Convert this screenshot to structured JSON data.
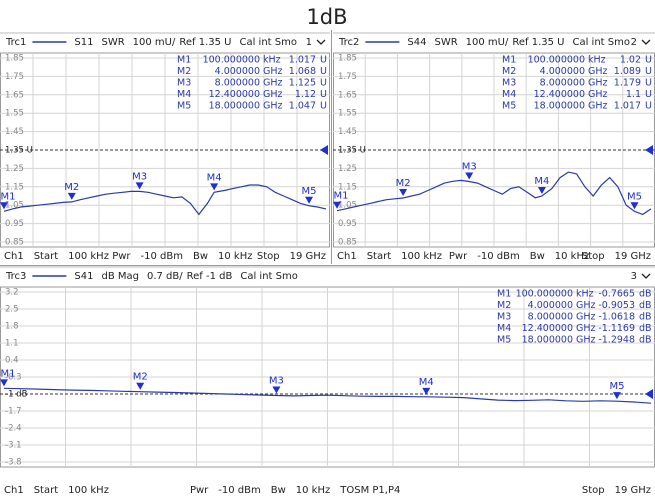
{
  "title": "1dB",
  "chart_data": [
    {
      "type": "line",
      "trace": "Trc1",
      "format": "SWR",
      "scale": "100 mU/",
      "ref": "Ref 1.35 U",
      "cal": "Cal int Smo",
      "trace_number": "1",
      "footer": [
        [
          "Ch1",
          "Start",
          "100 kHz"
        ],
        [
          "Pwr",
          "-10 dBm",
          "Bw",
          "10 kHz"
        ],
        [
          "Stop",
          "19 GHz"
        ]
      ],
      "x": [
        0.0001,
        0.5,
        1,
        1.5,
        2,
        2.5,
        3,
        3.5,
        4,
        4.5,
        5,
        5.5,
        6,
        6.5,
        7,
        7.5,
        8,
        8.5,
        9,
        9.5,
        10,
        10.5,
        11,
        11.5,
        12,
        12.4,
        13,
        13.5,
        14,
        14.5,
        15,
        15.5,
        16,
        16.5,
        17,
        17.5,
        18,
        18.5,
        19
      ],
      "xlim": [
        0.0001,
        19
      ],
      "ylim": [
        0.85,
        1.85
      ],
      "grid": true,
      "yticks": [
        1.85,
        1.75,
        1.65,
        1.55,
        1.45,
        {
          "value": 1.35,
          "label": "1.35 U"
        },
        1.25,
        1.15,
        1.05,
        0.95,
        0.85
      ],
      "series": [
        {
          "name": "S11",
          "color": "#2b3aa8",
          "values": [
            1.017,
            1.03,
            1.04,
            1.045,
            1.05,
            1.055,
            1.06,
            1.065,
            1.068,
            1.08,
            1.09,
            1.1,
            1.11,
            1.115,
            1.12,
            1.125,
            1.125,
            1.12,
            1.11,
            1.1,
            1.09,
            1.095,
            1.06,
            1.0,
            1.06,
            1.12,
            1.13,
            1.14,
            1.15,
            1.16,
            1.16,
            1.15,
            1.12,
            1.1,
            1.08,
            1.06,
            1.047,
            1.04,
            1.03
          ]
        }
      ],
      "markers": [
        {
          "name": "M1",
          "x": {
            "value": 0.0001,
            "label": "100.000000"
          },
          "x_unit": "kHz",
          "value": 1.017,
          "unit": "U"
        },
        {
          "name": "M2",
          "x": {
            "value": 4,
            "label": "4.000000"
          },
          "x_unit": "GHz",
          "value": 1.068,
          "unit": "U"
        },
        {
          "name": "M3",
          "x": {
            "value": 8,
            "label": "8.000000"
          },
          "x_unit": "GHz",
          "value": 1.125,
          "unit": "U"
        },
        {
          "name": "M4",
          "x": {
            "value": 12.4,
            "label": "12.400000"
          },
          "x_unit": "GHz",
          "value": 1.12,
          "unit": "U"
        },
        {
          "name": "M5",
          "x": {
            "value": 18,
            "label": "18.000000"
          },
          "x_unit": "GHz",
          "value": 1.047,
          "unit": "U"
        }
      ]
    },
    {
      "type": "line",
      "trace": "Trc2",
      "format": "SWR",
      "scale": "100 mU/",
      "ref": "Ref 1.35 U",
      "cal": "Cal int Smo",
      "trace_number": "2",
      "footer": [
        [
          "Ch1",
          "Start",
          "100 kHz"
        ],
        [
          "Pwr",
          "-10 dBm",
          "Bw",
          "10 kHz"
        ],
        [
          "Stop",
          "19 GHz"
        ]
      ],
      "x": [
        0.0001,
        0.5,
        1,
        1.5,
        2,
        2.5,
        3,
        3.5,
        4,
        4.5,
        5,
        5.5,
        6,
        6.5,
        7,
        7.5,
        8,
        8.5,
        9,
        9.5,
        10,
        10.5,
        11,
        11.5,
        12,
        12.4,
        13,
        13.5,
        14,
        14.5,
        15,
        15.5,
        16,
        16.5,
        17,
        17.5,
        18,
        18.5,
        19
      ],
      "xlim": [
        0.0001,
        19
      ],
      "ylim": [
        0.85,
        1.85
      ],
      "grid": true,
      "yticks": [
        1.85,
        1.75,
        1.65,
        1.55,
        1.45,
        {
          "value": 1.35,
          "label": "1.35 U"
        },
        1.25,
        1.15,
        1.05,
        0.95,
        0.85
      ],
      "series": [
        {
          "name": "S44",
          "color": "#2b3aa8",
          "values": [
            1.02,
            1.03,
            1.04,
            1.05,
            1.06,
            1.07,
            1.08,
            1.085,
            1.089,
            1.1,
            1.11,
            1.13,
            1.15,
            1.17,
            1.18,
            1.185,
            1.179,
            1.17,
            1.15,
            1.13,
            1.11,
            1.14,
            1.15,
            1.12,
            1.09,
            1.1,
            1.14,
            1.2,
            1.23,
            1.22,
            1.15,
            1.1,
            1.16,
            1.2,
            1.15,
            1.05,
            1.017,
            1.0,
            1.03
          ]
        }
      ],
      "markers": [
        {
          "name": "M1",
          "x": {
            "value": 0.0001,
            "label": "100.000000"
          },
          "x_unit": "kHz",
          "value": 1.02,
          "unit": "U"
        },
        {
          "name": "M2",
          "x": {
            "value": 4,
            "label": "4.000000"
          },
          "x_unit": "GHz",
          "value": 1.089,
          "unit": "U"
        },
        {
          "name": "M3",
          "x": {
            "value": 8,
            "label": "8.000000"
          },
          "x_unit": "GHz",
          "value": 1.179,
          "unit": "U"
        },
        {
          "name": "M4",
          "x": {
            "value": 12.4,
            "label": "12.400000"
          },
          "x_unit": "GHz",
          "value": 1.1,
          "unit": "U"
        },
        {
          "name": "M5",
          "x": {
            "value": 18,
            "label": "18.000000"
          },
          "x_unit": "GHz",
          "value": 1.017,
          "unit": "U"
        }
      ]
    },
    {
      "type": "line",
      "trace": "Trc3",
      "format": "dB Mag",
      "scale": "0.7 dB/",
      "ref": "Ref -1 dB",
      "cal": "Cal int Smo",
      "trace_number": "3",
      "footer": [
        [
          "Ch1",
          "Start",
          "100 kHz"
        ],
        [
          "Pwr",
          "-10 dBm",
          "Bw",
          "10 kHz",
          "TOSM P1,P4"
        ],
        [
          "Stop",
          "19 GHz"
        ]
      ],
      "x": [
        0.0001,
        0.5,
        1,
        1.5,
        2,
        2.5,
        3,
        3.5,
        4,
        4.5,
        5,
        5.5,
        6,
        6.5,
        7,
        7.5,
        8,
        8.5,
        9,
        9.5,
        10,
        10.5,
        11,
        11.5,
        12,
        12.4,
        13,
        13.5,
        14,
        14.5,
        15,
        15.5,
        16,
        16.5,
        17,
        17.5,
        18,
        18.5,
        19
      ],
      "xlim": [
        0.0001,
        19
      ],
      "ylim": [
        -3.8,
        3.2
      ],
      "grid": true,
      "yticks": [
        3.2,
        2.5,
        1.8,
        1.1,
        0.4,
        -0.3,
        {
          "value": -1,
          "label": "-1 dB"
        },
        -1.7,
        -2.4,
        -3.1,
        -3.8
      ],
      "series": [
        {
          "name": "S41",
          "color": "#2b3aa8",
          "values": [
            -0.7665,
            -0.78,
            -0.8,
            -0.82,
            -0.84,
            -0.85,
            -0.87,
            -0.89,
            -0.9053,
            -0.92,
            -0.94,
            -0.96,
            -0.98,
            -1.0,
            -1.02,
            -1.04,
            -1.0618,
            -1.08,
            -1.06,
            -1.05,
            -1.07,
            -1.09,
            -1.1,
            -1.1,
            -1.11,
            -1.1169,
            -1.13,
            -1.15,
            -1.2,
            -1.25,
            -1.27,
            -1.26,
            -1.24,
            -1.28,
            -1.3,
            -1.28,
            -1.2948,
            -1.33,
            -1.38
          ]
        }
      ],
      "markers": [
        {
          "name": "M1",
          "x": {
            "value": 0.0001,
            "label": "100.000000"
          },
          "x_unit": "kHz",
          "value": -0.7665,
          "unit": "dB"
        },
        {
          "name": "M2",
          "x": {
            "value": 4,
            "label": "4.000000"
          },
          "x_unit": "GHz",
          "value": -0.9053,
          "unit": "dB"
        },
        {
          "name": "M3",
          "x": {
            "value": 8,
            "label": "8.000000"
          },
          "x_unit": "GHz",
          "value": -1.0618,
          "unit": "dB"
        },
        {
          "name": "M4",
          "x": {
            "value": 12.4,
            "label": "12.400000"
          },
          "x_unit": "GHz",
          "value": -1.1169,
          "unit": "dB"
        },
        {
          "name": "M5",
          "x": {
            "value": 18,
            "label": "18.000000"
          },
          "x_unit": "GHz",
          "value": -1.2948,
          "unit": "dB"
        }
      ]
    }
  ]
}
